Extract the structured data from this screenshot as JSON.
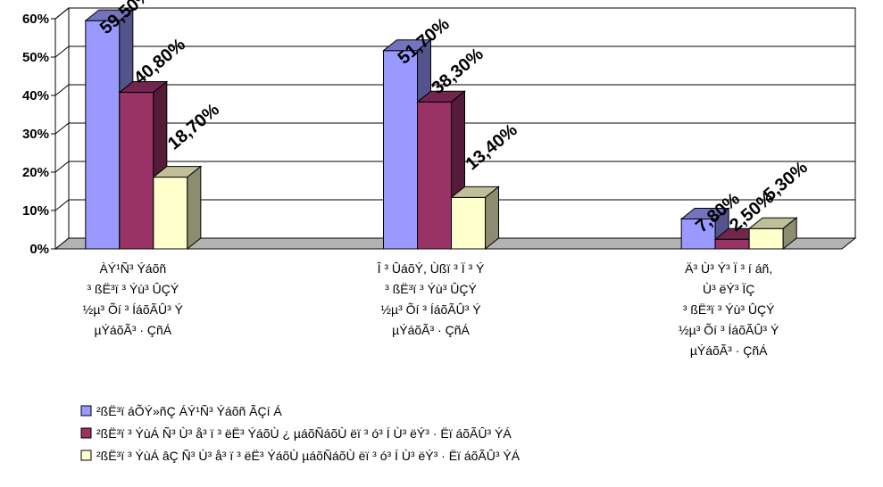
{
  "chart_data": {
    "type": "bar",
    "style": "3d-clustered-column",
    "ylim": [
      0,
      60
    ],
    "y_ticks": [
      "0%",
      "10%",
      "20%",
      "30%",
      "40%",
      "50%",
      "60%"
    ],
    "grid": true,
    "legend_position": "bottom",
    "categories": [
      [
        "ÀÝ¹Ñ³ Ýáõñ",
        "³ ßË³ï ³ Ýù³ ÛÇÝ",
        "½µ³ Õí ³ ÍáõÃÛ³ Ý",
        "µÝáõÃ³ · ÇñÁ"
      ],
      [
        "Î ³ ÛáõÝ, Ùßï ³ Ï ³ Ý",
        "³ ßË³ï ³ Ýù³ ÛÇÝ",
        "½µ³ Õí ³ ÍáõÃÛ³ Ý",
        "µÝáõÃ³ · ÇñÁ"
      ],
      [
        "Ä³ Ù³ Ý³ Ï ³ í áñ,",
        "Ù³ ëÝ³ ÏÇ",
        "³ ßË³ï ³ Ýù³ ÛÇÝ",
        "½µ³ Õí ³ ÍáõÃÛ³ Ý",
        "µÝáõÃ³ · ÇñÁ"
      ]
    ],
    "series": [
      {
        "name": "²ßË³ï áÕÝ»ñÇ ÁÝ¹Ñ³ Ýáõñ ÃÇí Á",
        "color": "#9999ff",
        "values": [
          59.5,
          51.7,
          7.8
        ],
        "labels": [
          "59,50%",
          "51,70%",
          "7,80%"
        ]
      },
      {
        "name": "²ßË³ï ³ ÝùÁ Ñ³ Ù³ å³ ï ³ ëË³ ÝáõÙ ¿ µáõÑáõÙ ëï ³ ó³ Í Ù³ ëÝ³ · Ëï áõÃÛ³ ÝÁ",
        "color": "#993366",
        "values": [
          40.8,
          38.3,
          2.5
        ],
        "labels": [
          "40,80%",
          "38,30%",
          "2,50%"
        ]
      },
      {
        "name": "²ßË³ï ³ ÝùÁ âÇ Ñ³ Ù³ å³ ï ³ ëË³ ÝáõÙ µáõÑáõÙ ëï ³ ó³ Í Ù³ ëÝ³ · Ëï áõÃÛ³ ÝÁ",
        "color": "#ffffcc",
        "values": [
          18.7,
          13.4,
          5.3
        ],
        "labels": [
          "18,70%",
          "13,40%",
          "5,30%"
        ]
      }
    ]
  }
}
